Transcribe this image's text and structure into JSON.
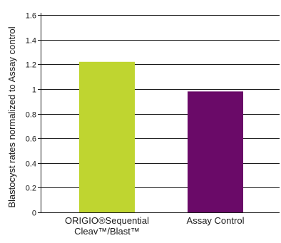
{
  "chart_data": {
    "type": "bar",
    "title": "",
    "xlabel": "",
    "ylabel": "Blastocyst rates normalized to Assay control",
    "ylim": [
      0,
      1.6
    ],
    "yticks": [
      0,
      0.2,
      0.4,
      0.6,
      0.8,
      1,
      1.2,
      1.4,
      1.6
    ],
    "ytick_labels": [
      "0",
      "0.2",
      "0.4",
      "0.6",
      "0.8",
      "1",
      "1.2",
      "1.4",
      "1.6"
    ],
    "grid": true,
    "legend": "none",
    "categories": [
      [
        "ORIGIO®Sequential",
        "Cleav™/Blast™"
      ],
      [
        "Assay Control"
      ]
    ],
    "values": [
      1.22,
      0.98
    ],
    "colors": [
      "#bfd530",
      "#6a0a68"
    ]
  }
}
